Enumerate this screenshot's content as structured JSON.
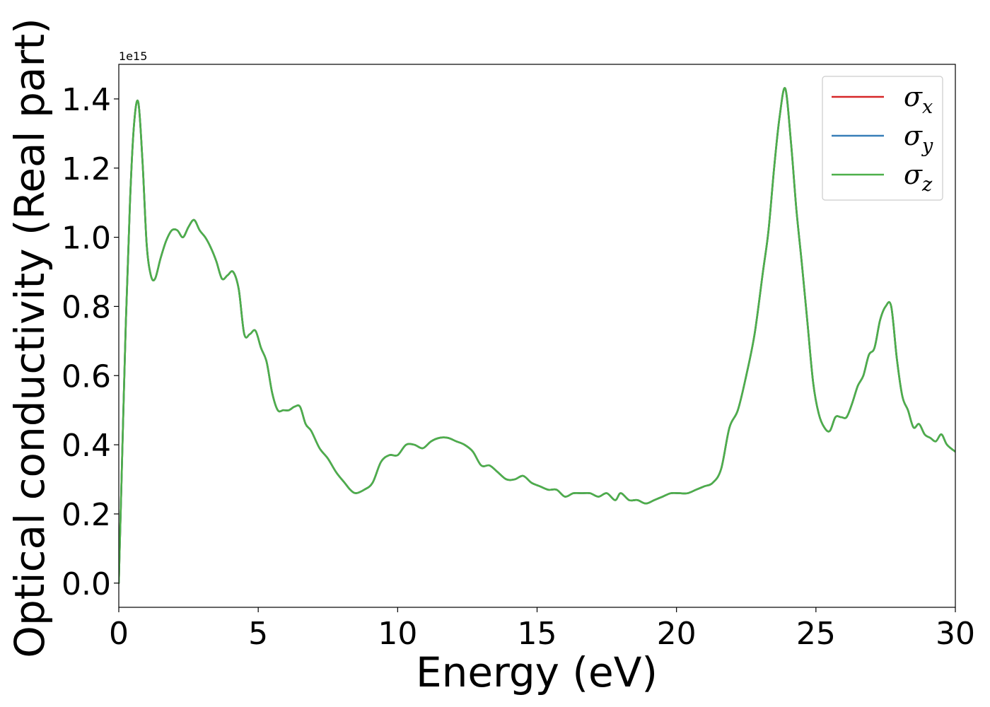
{
  "chart_data": {
    "type": "line",
    "xlabel": "Energy (eV)",
    "ylabel": "Optical conductivity (Real part)",
    "y_offset_label": "1e15",
    "y_scale_factor": 1000000000000000.0,
    "xlim": [
      0,
      30
    ],
    "ylim": [
      -0.07,
      1.5
    ],
    "x_ticks": [
      0,
      5,
      10,
      15,
      20,
      25,
      30
    ],
    "x_tick_labels": [
      "0",
      "5",
      "10",
      "15",
      "20",
      "25",
      "30"
    ],
    "y_ticks": [
      0.0,
      0.2,
      0.4,
      0.6,
      0.8,
      1.0,
      1.2,
      1.4
    ],
    "y_tick_labels": [
      "0.0",
      "0.2",
      "0.4",
      "0.6",
      "0.8",
      "1.0",
      "1.2",
      "1.4"
    ],
    "grid": false,
    "legend_position": "top-right",
    "series": [
      {
        "name": "σx",
        "legend_base": "σ",
        "legend_sub": "x",
        "color": "#d62728",
        "x": [
          0.0,
          0.1,
          0.25,
          0.4,
          0.55,
          0.7,
          0.85,
          1.0,
          1.15,
          1.3,
          1.5,
          1.7,
          1.9,
          2.1,
          2.3,
          2.5,
          2.7,
          2.9,
          3.1,
          3.3,
          3.5,
          3.7,
          3.9,
          4.1,
          4.3,
          4.5,
          4.7,
          4.9,
          5.1,
          5.3,
          5.5,
          5.7,
          5.9,
          6.1,
          6.3,
          6.5,
          6.7,
          6.9,
          7.2,
          7.5,
          7.8,
          8.1,
          8.3,
          8.5,
          8.8,
          9.1,
          9.4,
          9.7,
          10.0,
          10.3,
          10.6,
          10.9,
          11.2,
          11.5,
          11.8,
          12.1,
          12.4,
          12.7,
          13.0,
          13.3,
          13.6,
          13.9,
          14.2,
          14.5,
          14.8,
          15.1,
          15.4,
          15.7,
          16.0,
          16.3,
          16.6,
          16.9,
          17.2,
          17.5,
          17.8,
          18.0,
          18.3,
          18.6,
          18.9,
          19.2,
          19.5,
          19.8,
          20.1,
          20.4,
          20.7,
          21.0,
          21.3,
          21.6,
          21.9,
          22.2,
          22.5,
          22.8,
          23.1,
          23.3,
          23.5,
          23.7,
          23.9,
          24.1,
          24.3,
          24.5,
          24.7,
          24.9,
          25.1,
          25.3,
          25.5,
          25.7,
          25.9,
          26.1,
          26.3,
          26.5,
          26.7,
          26.9,
          27.1,
          27.3,
          27.5,
          27.7,
          27.9,
          28.1,
          28.3,
          28.5,
          28.7,
          28.9,
          29.1,
          29.3,
          29.5,
          29.7,
          30.0
        ],
        "y": [
          0.0,
          0.3,
          0.75,
          1.1,
          1.33,
          1.39,
          1.22,
          0.98,
          0.89,
          0.88,
          0.94,
          0.99,
          1.02,
          1.02,
          1.0,
          1.03,
          1.05,
          1.02,
          1.0,
          0.97,
          0.93,
          0.88,
          0.89,
          0.9,
          0.85,
          0.72,
          0.72,
          0.73,
          0.68,
          0.64,
          0.55,
          0.5,
          0.5,
          0.5,
          0.51,
          0.51,
          0.46,
          0.44,
          0.39,
          0.36,
          0.32,
          0.29,
          0.27,
          0.26,
          0.27,
          0.29,
          0.35,
          0.37,
          0.37,
          0.4,
          0.4,
          0.39,
          0.41,
          0.42,
          0.42,
          0.41,
          0.4,
          0.38,
          0.34,
          0.34,
          0.32,
          0.3,
          0.3,
          0.31,
          0.29,
          0.28,
          0.27,
          0.27,
          0.25,
          0.26,
          0.26,
          0.26,
          0.25,
          0.26,
          0.24,
          0.26,
          0.24,
          0.24,
          0.23,
          0.24,
          0.25,
          0.26,
          0.26,
          0.26,
          0.27,
          0.28,
          0.29,
          0.33,
          0.45,
          0.5,
          0.6,
          0.72,
          0.9,
          1.02,
          1.2,
          1.35,
          1.43,
          1.28,
          1.08,
          0.92,
          0.75,
          0.58,
          0.49,
          0.45,
          0.44,
          0.48,
          0.48,
          0.48,
          0.52,
          0.57,
          0.6,
          0.66,
          0.68,
          0.76,
          0.8,
          0.8,
          0.65,
          0.54,
          0.5,
          0.45,
          0.46,
          0.43,
          0.42,
          0.41,
          0.43,
          0.4,
          0.38
        ]
      },
      {
        "name": "σy",
        "legend_base": "σ",
        "legend_sub": "y",
        "color": "#377eb8",
        "x": [
          0.0,
          0.1,
          0.25,
          0.4,
          0.55,
          0.7,
          0.85,
          1.0,
          1.15,
          1.3,
          1.5,
          1.7,
          1.9,
          2.1,
          2.3,
          2.5,
          2.7,
          2.9,
          3.1,
          3.3,
          3.5,
          3.7,
          3.9,
          4.1,
          4.3,
          4.5,
          4.7,
          4.9,
          5.1,
          5.3,
          5.5,
          5.7,
          5.9,
          6.1,
          6.3,
          6.5,
          6.7,
          6.9,
          7.2,
          7.5,
          7.8,
          8.1,
          8.3,
          8.5,
          8.8,
          9.1,
          9.4,
          9.7,
          10.0,
          10.3,
          10.6,
          10.9,
          11.2,
          11.5,
          11.8,
          12.1,
          12.4,
          12.7,
          13.0,
          13.3,
          13.6,
          13.9,
          14.2,
          14.5,
          14.8,
          15.1,
          15.4,
          15.7,
          16.0,
          16.3,
          16.6,
          16.9,
          17.2,
          17.5,
          17.8,
          18.0,
          18.3,
          18.6,
          18.9,
          19.2,
          19.5,
          19.8,
          20.1,
          20.4,
          20.7,
          21.0,
          21.3,
          21.6,
          21.9,
          22.2,
          22.5,
          22.8,
          23.1,
          23.3,
          23.5,
          23.7,
          23.9,
          24.1,
          24.3,
          24.5,
          24.7,
          24.9,
          25.1,
          25.3,
          25.5,
          25.7,
          25.9,
          26.1,
          26.3,
          26.5,
          26.7,
          26.9,
          27.1,
          27.3,
          27.5,
          27.7,
          27.9,
          28.1,
          28.3,
          28.5,
          28.7,
          28.9,
          29.1,
          29.3,
          29.5,
          29.7,
          30.0
        ],
        "y": [
          0.0,
          0.3,
          0.75,
          1.1,
          1.33,
          1.39,
          1.22,
          0.98,
          0.89,
          0.88,
          0.94,
          0.99,
          1.02,
          1.02,
          1.0,
          1.03,
          1.05,
          1.02,
          1.0,
          0.97,
          0.93,
          0.88,
          0.89,
          0.9,
          0.85,
          0.72,
          0.72,
          0.73,
          0.68,
          0.64,
          0.55,
          0.5,
          0.5,
          0.5,
          0.51,
          0.51,
          0.46,
          0.44,
          0.39,
          0.36,
          0.32,
          0.29,
          0.27,
          0.26,
          0.27,
          0.29,
          0.35,
          0.37,
          0.37,
          0.4,
          0.4,
          0.39,
          0.41,
          0.42,
          0.42,
          0.41,
          0.4,
          0.38,
          0.34,
          0.34,
          0.32,
          0.3,
          0.3,
          0.31,
          0.29,
          0.28,
          0.27,
          0.27,
          0.25,
          0.26,
          0.26,
          0.26,
          0.25,
          0.26,
          0.24,
          0.26,
          0.24,
          0.24,
          0.23,
          0.24,
          0.25,
          0.26,
          0.26,
          0.26,
          0.27,
          0.28,
          0.29,
          0.33,
          0.45,
          0.5,
          0.6,
          0.72,
          0.9,
          1.02,
          1.2,
          1.35,
          1.43,
          1.28,
          1.08,
          0.92,
          0.75,
          0.58,
          0.49,
          0.45,
          0.44,
          0.48,
          0.48,
          0.48,
          0.52,
          0.57,
          0.6,
          0.66,
          0.68,
          0.76,
          0.8,
          0.8,
          0.65,
          0.54,
          0.5,
          0.45,
          0.46,
          0.43,
          0.42,
          0.41,
          0.43,
          0.4,
          0.38
        ]
      },
      {
        "name": "σz",
        "legend_base": "σ",
        "legend_sub": "z",
        "color": "#4daf4a",
        "x": [
          0.0,
          0.1,
          0.25,
          0.4,
          0.55,
          0.7,
          0.85,
          1.0,
          1.15,
          1.3,
          1.5,
          1.7,
          1.9,
          2.1,
          2.3,
          2.5,
          2.7,
          2.9,
          3.1,
          3.3,
          3.5,
          3.7,
          3.9,
          4.1,
          4.3,
          4.5,
          4.7,
          4.9,
          5.1,
          5.3,
          5.5,
          5.7,
          5.9,
          6.1,
          6.3,
          6.5,
          6.7,
          6.9,
          7.2,
          7.5,
          7.8,
          8.1,
          8.3,
          8.5,
          8.8,
          9.1,
          9.4,
          9.7,
          10.0,
          10.3,
          10.6,
          10.9,
          11.2,
          11.5,
          11.8,
          12.1,
          12.4,
          12.7,
          13.0,
          13.3,
          13.6,
          13.9,
          14.2,
          14.5,
          14.8,
          15.1,
          15.4,
          15.7,
          16.0,
          16.3,
          16.6,
          16.9,
          17.2,
          17.5,
          17.8,
          18.0,
          18.3,
          18.6,
          18.9,
          19.2,
          19.5,
          19.8,
          20.1,
          20.4,
          20.7,
          21.0,
          21.3,
          21.6,
          21.9,
          22.2,
          22.5,
          22.8,
          23.1,
          23.3,
          23.5,
          23.7,
          23.9,
          24.1,
          24.3,
          24.5,
          24.7,
          24.9,
          25.1,
          25.3,
          25.5,
          25.7,
          25.9,
          26.1,
          26.3,
          26.5,
          26.7,
          26.9,
          27.1,
          27.3,
          27.5,
          27.7,
          27.9,
          28.1,
          28.3,
          28.5,
          28.7,
          28.9,
          29.1,
          29.3,
          29.5,
          29.7,
          30.0
        ],
        "y": [
          0.0,
          0.3,
          0.75,
          1.1,
          1.33,
          1.39,
          1.22,
          0.98,
          0.89,
          0.88,
          0.94,
          0.99,
          1.02,
          1.02,
          1.0,
          1.03,
          1.05,
          1.02,
          1.0,
          0.97,
          0.93,
          0.88,
          0.89,
          0.9,
          0.85,
          0.72,
          0.72,
          0.73,
          0.68,
          0.64,
          0.55,
          0.5,
          0.5,
          0.5,
          0.51,
          0.51,
          0.46,
          0.44,
          0.39,
          0.36,
          0.32,
          0.29,
          0.27,
          0.26,
          0.27,
          0.29,
          0.35,
          0.37,
          0.37,
          0.4,
          0.4,
          0.39,
          0.41,
          0.42,
          0.42,
          0.41,
          0.4,
          0.38,
          0.34,
          0.34,
          0.32,
          0.3,
          0.3,
          0.31,
          0.29,
          0.28,
          0.27,
          0.27,
          0.25,
          0.26,
          0.26,
          0.26,
          0.25,
          0.26,
          0.24,
          0.26,
          0.24,
          0.24,
          0.23,
          0.24,
          0.25,
          0.26,
          0.26,
          0.26,
          0.27,
          0.28,
          0.29,
          0.33,
          0.45,
          0.5,
          0.6,
          0.72,
          0.9,
          1.02,
          1.2,
          1.35,
          1.43,
          1.28,
          1.08,
          0.92,
          0.75,
          0.58,
          0.49,
          0.45,
          0.44,
          0.48,
          0.48,
          0.48,
          0.52,
          0.57,
          0.6,
          0.66,
          0.68,
          0.76,
          0.8,
          0.8,
          0.65,
          0.54,
          0.5,
          0.45,
          0.46,
          0.43,
          0.42,
          0.41,
          0.43,
          0.4,
          0.38
        ]
      }
    ]
  }
}
